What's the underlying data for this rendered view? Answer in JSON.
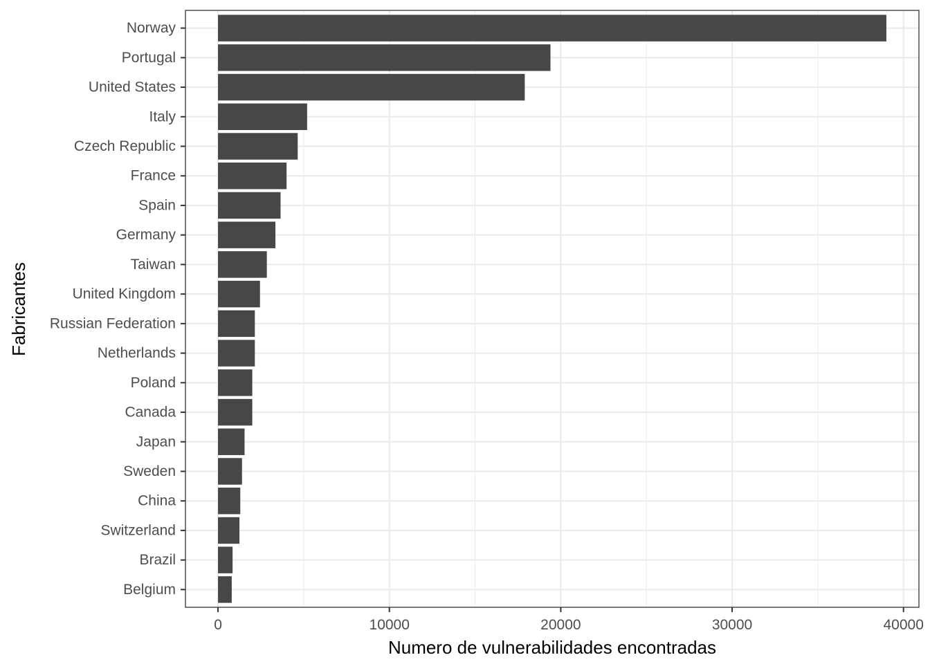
{
  "chart_data": {
    "type": "bar",
    "orientation": "horizontal",
    "title": "",
    "xlabel": "Numero de vulnerabilidades encontradas",
    "ylabel": "Fabricantes",
    "xlim": [
      -1900,
      40900
    ],
    "xticks": [
      0,
      10000,
      20000,
      30000,
      40000
    ],
    "grid": true,
    "categories": [
      "Norway",
      "Portugal",
      "United States",
      "Italy",
      "Czech Republic",
      "France",
      "Spain",
      "Germany",
      "Taiwan",
      "United Kingdom",
      "Russian Federation",
      "Netherlands",
      "Poland",
      "Canada",
      "Japan",
      "Sweden",
      "China",
      "Switzerland",
      "Brazil",
      "Belgium"
    ],
    "values": [
      39000,
      19400,
      17900,
      5200,
      4650,
      4000,
      3650,
      3350,
      2850,
      2450,
      2150,
      2150,
      2000,
      2000,
      1550,
      1400,
      1300,
      1250,
      850,
      800
    ],
    "bar_color": "#474747",
    "grid_color": "#ebebeb",
    "panel_border_color": "#333333"
  }
}
